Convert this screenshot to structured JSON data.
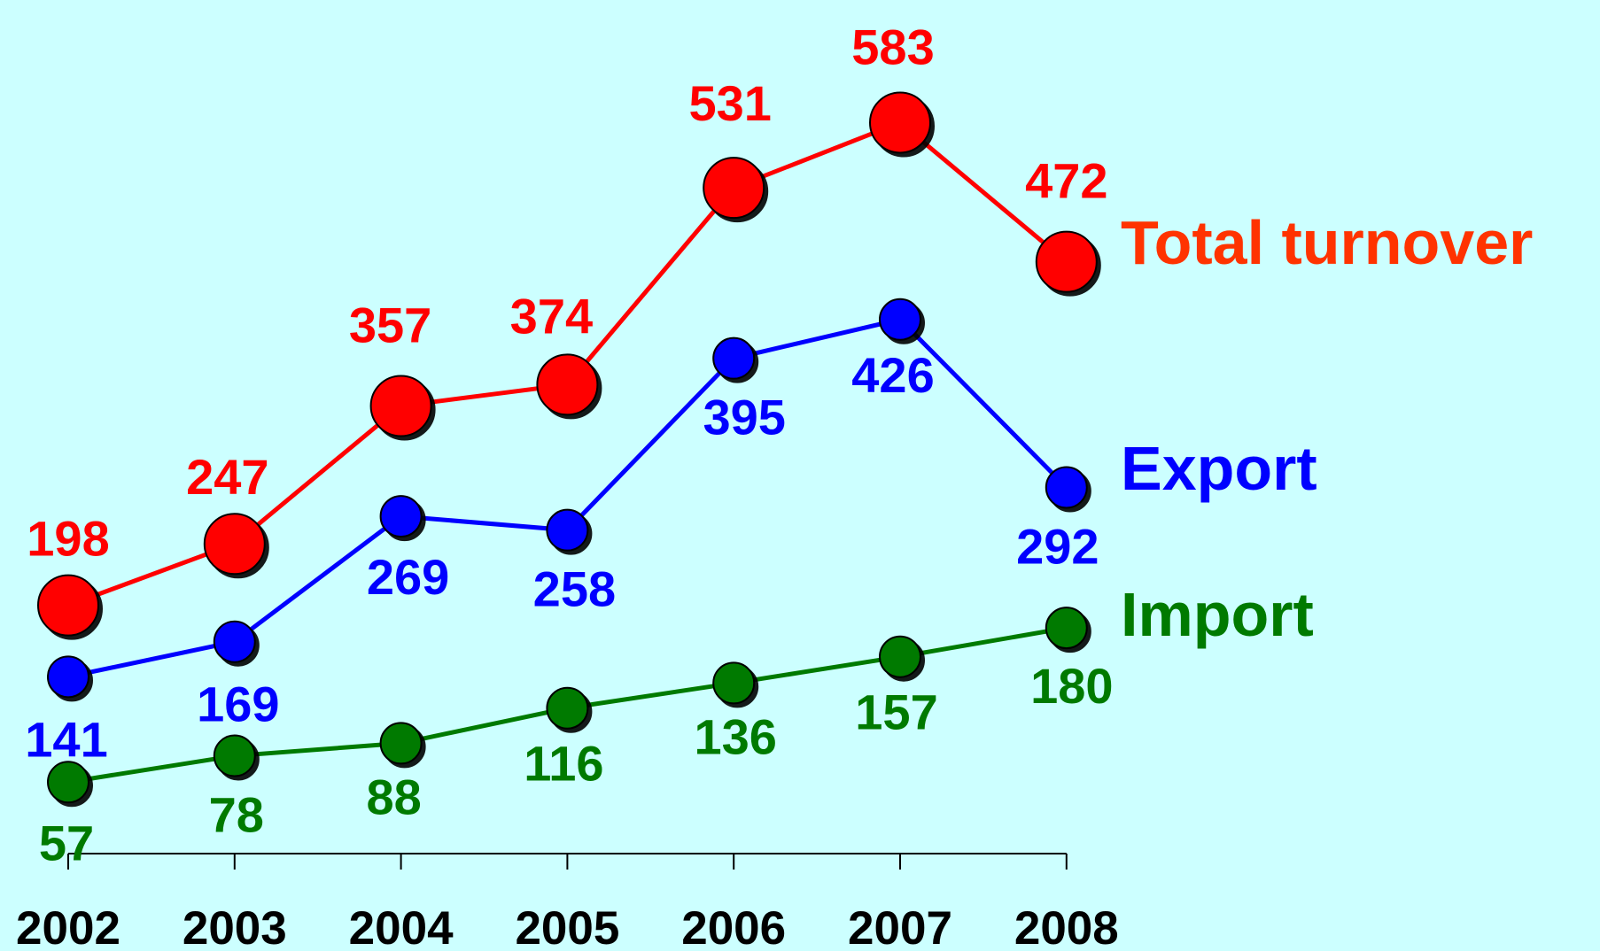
{
  "chart_data": {
    "type": "line",
    "categories": [
      "2002",
      "2003",
      "2004",
      "2005",
      "2006",
      "2007",
      "2008"
    ],
    "series": [
      {
        "name": "Total turnover",
        "color": "#ff0000",
        "label_color": "#ff3300",
        "values": [
          198,
          247,
          357,
          374,
          531,
          583,
          472
        ]
      },
      {
        "name": "Export",
        "color": "#0000ff",
        "label_color": "#0000ff",
        "values": [
          141,
          169,
          269,
          258,
          395,
          426,
          292
        ]
      },
      {
        "name": "Import",
        "color": "#007a00",
        "label_color": "#007a00",
        "values": [
          57,
          78,
          88,
          116,
          136,
          157,
          180
        ]
      }
    ],
    "grid": false,
    "legend": "right, inline at line ends"
  }
}
